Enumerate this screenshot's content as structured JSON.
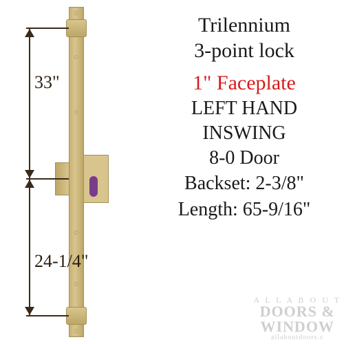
{
  "product": {
    "title_line1": "Trilennium",
    "title_line2": "3-point lock",
    "faceplate": "1\" Faceplate",
    "hand_line1": "LEFT HAND",
    "hand_line2": "INSWING",
    "door": "8-0 Door",
    "backset_label": "Backset: 2-3/8\"",
    "length_label": "Length: 65-9/16\""
  },
  "dimensions": {
    "upper": "33\"",
    "lower": "24-1/4\""
  },
  "diagram_style": {
    "type": "technical-diagram",
    "faceplate_color": "#d8c58e",
    "outline_color": "#a38f56",
    "dimension_color": "#3a2a1a",
    "keyhole_color": "#7a3c8a",
    "background_color": "#ffffff",
    "dim_fontsize": 26
  },
  "text_style": {
    "title_color": "#1a1a1a",
    "title_fontsize": 30,
    "accent_color": "#d91b1b",
    "body_fontsize": 28,
    "font_family": "Times New Roman"
  },
  "watermark": {
    "line1": "A L L  A B O U T",
    "line2": "DOORS &",
    "line3": "WINDOW",
    "url": "allaboutdoors.c",
    "color": "#cfcfcf"
  }
}
